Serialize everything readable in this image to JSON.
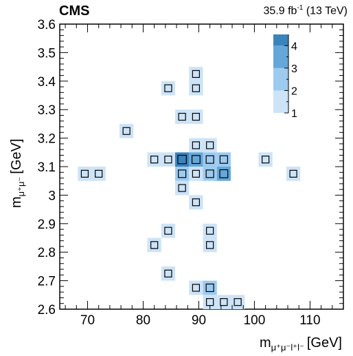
{
  "header": {
    "experiment": "CMS",
    "lumi_value": "35.9 fb",
    "lumi_exp": "-1",
    "lumi_energy": "(13 TeV)"
  },
  "chart_data": {
    "type": "heatmap",
    "xlabel_main": "m",
    "xlabel_sub": "μ⁺μ⁻l⁺l⁻",
    "xlabel_unit": "[GeV]",
    "ylabel_main": "m",
    "ylabel_sub": "μ⁺μ⁻",
    "ylabel_unit": "[GeV]",
    "xlim": [
      65,
      116
    ],
    "ylim": [
      2.6,
      3.6
    ],
    "x_bin_width": 2.5,
    "y_bin_width": 0.05,
    "x_ticks": [
      70,
      80,
      90,
      100,
      110
    ],
    "y_ticks": [
      2.6,
      2.7,
      2.8,
      2.9,
      3.0,
      3.1,
      3.2,
      3.3,
      3.4,
      3.5,
      3.6
    ],
    "y_tick_labels": [
      "2.6",
      "2.7",
      "2.8",
      "2.9",
      "3",
      "3.1",
      "3.2",
      "3.3",
      "3.4",
      "3.5",
      "3.6"
    ],
    "colorbar": {
      "ticks": [
        1,
        2,
        3,
        4
      ],
      "range": [
        1,
        4.5
      ],
      "levels": [
        {
          "min": 1,
          "max": 2,
          "color": "#cde3f7"
        },
        {
          "min": 2,
          "max": 3,
          "color": "#9dcbf0"
        },
        {
          "min": 3,
          "max": 4,
          "color": "#65a7d9"
        },
        {
          "min": 4,
          "max": 4.5,
          "color": "#3a84bc"
        }
      ]
    },
    "cells": [
      {
        "x": 89.5,
        "y": 3.425,
        "value": 1
      },
      {
        "x": 84.5,
        "y": 3.375,
        "value": 1
      },
      {
        "x": 89.5,
        "y": 3.375,
        "value": 1
      },
      {
        "x": 87.0,
        "y": 3.275,
        "value": 1
      },
      {
        "x": 89.5,
        "y": 3.275,
        "value": 1
      },
      {
        "x": 77.0,
        "y": 3.225,
        "value": 1
      },
      {
        "x": 89.5,
        "y": 3.175,
        "value": 1
      },
      {
        "x": 92.0,
        "y": 3.175,
        "value": 1
      },
      {
        "x": 82.0,
        "y": 3.125,
        "value": 1
      },
      {
        "x": 84.5,
        "y": 3.125,
        "value": 1
      },
      {
        "x": 87.0,
        "y": 3.125,
        "value": 4
      },
      {
        "x": 89.5,
        "y": 3.125,
        "value": 3
      },
      {
        "x": 92.0,
        "y": 3.125,
        "value": 2
      },
      {
        "x": 94.5,
        "y": 3.125,
        "value": 2
      },
      {
        "x": 102.0,
        "y": 3.125,
        "value": 1
      },
      {
        "x": 69.5,
        "y": 3.075,
        "value": 1
      },
      {
        "x": 72.0,
        "y": 3.075,
        "value": 1
      },
      {
        "x": 87.0,
        "y": 3.075,
        "value": 2
      },
      {
        "x": 89.5,
        "y": 3.075,
        "value": 1
      },
      {
        "x": 92.0,
        "y": 3.075,
        "value": 2
      },
      {
        "x": 94.5,
        "y": 3.075,
        "value": 3
      },
      {
        "x": 107.0,
        "y": 3.075,
        "value": 1
      },
      {
        "x": 87.0,
        "y": 3.025,
        "value": 1
      },
      {
        "x": 89.5,
        "y": 2.975,
        "value": 1
      },
      {
        "x": 84.5,
        "y": 2.875,
        "value": 1
      },
      {
        "x": 92.0,
        "y": 2.875,
        "value": 1
      },
      {
        "x": 82.0,
        "y": 2.825,
        "value": 1
      },
      {
        "x": 92.0,
        "y": 2.825,
        "value": 1
      },
      {
        "x": 84.5,
        "y": 2.725,
        "value": 1
      },
      {
        "x": 89.5,
        "y": 2.675,
        "value": 1
      },
      {
        "x": 92.0,
        "y": 2.675,
        "value": 2
      },
      {
        "x": 92.0,
        "y": 2.625,
        "value": 1
      },
      {
        "x": 94.5,
        "y": 2.625,
        "value": 1
      },
      {
        "x": 97.0,
        "y": 2.625,
        "value": 1
      }
    ]
  }
}
